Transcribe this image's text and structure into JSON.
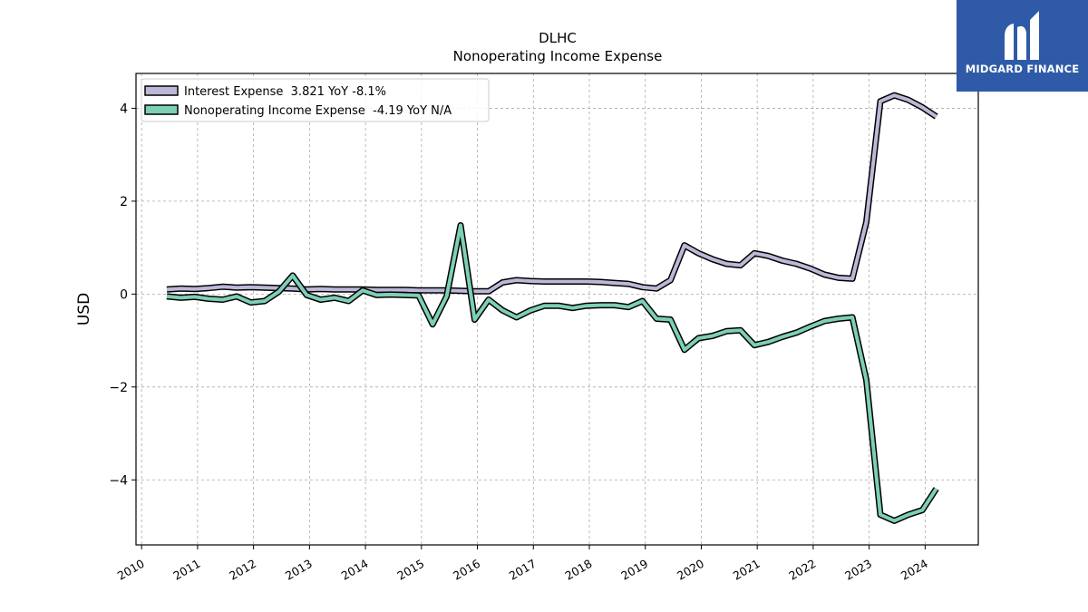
{
  "chart_data": {
    "type": "line",
    "title": "DLHC",
    "subtitle": "Nonoperating Income Expense",
    "ylabel": "USD",
    "xlabel": "",
    "xlim": [
      2009.9,
      2024.95
    ],
    "ylim": [
      -5.4,
      4.75
    ],
    "yticks": [
      -4,
      -2,
      0,
      2,
      4
    ],
    "ytick_labels": [
      "−4",
      "−2",
      "0",
      "2",
      "4"
    ],
    "xticks": [
      2010,
      2011,
      2012,
      2013,
      2014,
      2015,
      2016,
      2017,
      2018,
      2019,
      2020,
      2021,
      2022,
      2023,
      2024
    ],
    "xtick_labels": [
      "2010",
      "2011",
      "2012",
      "2013",
      "2014",
      "2015",
      "2016",
      "2017",
      "2018",
      "2019",
      "2020",
      "2021",
      "2022",
      "2023",
      "2024"
    ],
    "grid": true,
    "legend_position": "top-left",
    "series": [
      {
        "name": "Interest Expense  3.821 YoY -8.1%",
        "color": "#bcb8d8",
        "points": [
          [
            2010.45,
            0.1
          ],
          [
            2010.7,
            0.12
          ],
          [
            2010.95,
            0.11
          ],
          [
            2011.2,
            0.13
          ],
          [
            2011.45,
            0.16
          ],
          [
            2011.7,
            0.14
          ],
          [
            2011.95,
            0.15
          ],
          [
            2012.2,
            0.14
          ],
          [
            2012.45,
            0.13
          ],
          [
            2012.7,
            0.12
          ],
          [
            2012.95,
            0.1
          ],
          [
            2013.2,
            0.11
          ],
          [
            2013.45,
            0.1
          ],
          [
            2013.7,
            0.1
          ],
          [
            2013.95,
            0.1
          ],
          [
            2014.2,
            0.09
          ],
          [
            2014.45,
            0.09
          ],
          [
            2014.7,
            0.09
          ],
          [
            2014.95,
            0.08
          ],
          [
            2015.2,
            0.08
          ],
          [
            2015.45,
            0.08
          ],
          [
            2015.7,
            0.07
          ],
          [
            2015.95,
            0.06
          ],
          [
            2016.2,
            0.06
          ],
          [
            2016.45,
            0.25
          ],
          [
            2016.7,
            0.3
          ],
          [
            2016.95,
            0.28
          ],
          [
            2017.2,
            0.27
          ],
          [
            2017.45,
            0.27
          ],
          [
            2017.7,
            0.27
          ],
          [
            2017.95,
            0.27
          ],
          [
            2018.2,
            0.26
          ],
          [
            2018.45,
            0.24
          ],
          [
            2018.7,
            0.22
          ],
          [
            2018.95,
            0.15
          ],
          [
            2019.2,
            0.12
          ],
          [
            2019.45,
            0.3
          ],
          [
            2019.7,
            1.05
          ],
          [
            2019.95,
            0.88
          ],
          [
            2020.2,
            0.75
          ],
          [
            2020.45,
            0.65
          ],
          [
            2020.7,
            0.62
          ],
          [
            2020.95,
            0.88
          ],
          [
            2021.2,
            0.82
          ],
          [
            2021.45,
            0.72
          ],
          [
            2021.7,
            0.65
          ],
          [
            2021.95,
            0.55
          ],
          [
            2022.2,
            0.42
          ],
          [
            2022.45,
            0.35
          ],
          [
            2022.7,
            0.33
          ],
          [
            2022.95,
            1.55
          ],
          [
            2023.2,
            4.15
          ],
          [
            2023.45,
            4.28
          ],
          [
            2023.7,
            4.18
          ],
          [
            2023.95,
            4.02
          ],
          [
            2024.2,
            3.82
          ]
        ]
      },
      {
        "name": "Nonoperating Income Expense  -4.19 YoY N/A",
        "color": "#7dcfb6",
        "points": [
          [
            2010.45,
            -0.05
          ],
          [
            2010.7,
            -0.08
          ],
          [
            2010.95,
            -0.06
          ],
          [
            2011.2,
            -0.1
          ],
          [
            2011.45,
            -0.12
          ],
          [
            2011.7,
            -0.05
          ],
          [
            2011.95,
            -0.18
          ],
          [
            2012.2,
            -0.15
          ],
          [
            2012.45,
            0.05
          ],
          [
            2012.7,
            0.4
          ],
          [
            2012.95,
            -0.02
          ],
          [
            2013.2,
            -0.12
          ],
          [
            2013.45,
            -0.08
          ],
          [
            2013.7,
            -0.15
          ],
          [
            2013.95,
            0.08
          ],
          [
            2014.2,
            -0.02
          ],
          [
            2014.45,
            -0.01
          ],
          [
            2014.7,
            -0.02
          ],
          [
            2014.95,
            -0.03
          ],
          [
            2015.2,
            -0.65
          ],
          [
            2015.45,
            -0.05
          ],
          [
            2015.7,
            1.48
          ],
          [
            2015.95,
            -0.55
          ],
          [
            2016.2,
            -0.12
          ],
          [
            2016.45,
            -0.35
          ],
          [
            2016.7,
            -0.5
          ],
          [
            2016.95,
            -0.35
          ],
          [
            2017.2,
            -0.25
          ],
          [
            2017.45,
            -0.25
          ],
          [
            2017.7,
            -0.3
          ],
          [
            2017.95,
            -0.25
          ],
          [
            2018.2,
            -0.24
          ],
          [
            2018.45,
            -0.24
          ],
          [
            2018.7,
            -0.28
          ],
          [
            2018.95,
            -0.15
          ],
          [
            2019.2,
            -0.53
          ],
          [
            2019.45,
            -0.55
          ],
          [
            2019.7,
            -1.2
          ],
          [
            2019.95,
            -0.95
          ],
          [
            2020.2,
            -0.9
          ],
          [
            2020.45,
            -0.8
          ],
          [
            2020.7,
            -0.78
          ],
          [
            2020.95,
            -1.1
          ],
          [
            2021.2,
            -1.03
          ],
          [
            2021.45,
            -0.92
          ],
          [
            2021.7,
            -0.83
          ],
          [
            2021.95,
            -0.7
          ],
          [
            2022.2,
            -0.58
          ],
          [
            2022.45,
            -0.53
          ],
          [
            2022.7,
            -0.5
          ],
          [
            2022.95,
            -1.85
          ],
          [
            2023.2,
            -4.75
          ],
          [
            2023.45,
            -4.88
          ],
          [
            2023.7,
            -4.75
          ],
          [
            2023.95,
            -4.65
          ],
          [
            2024.2,
            -4.19
          ]
        ]
      }
    ]
  },
  "logo": {
    "text": "MIDGARD FINANCE",
    "background": "#2f5aa7"
  }
}
